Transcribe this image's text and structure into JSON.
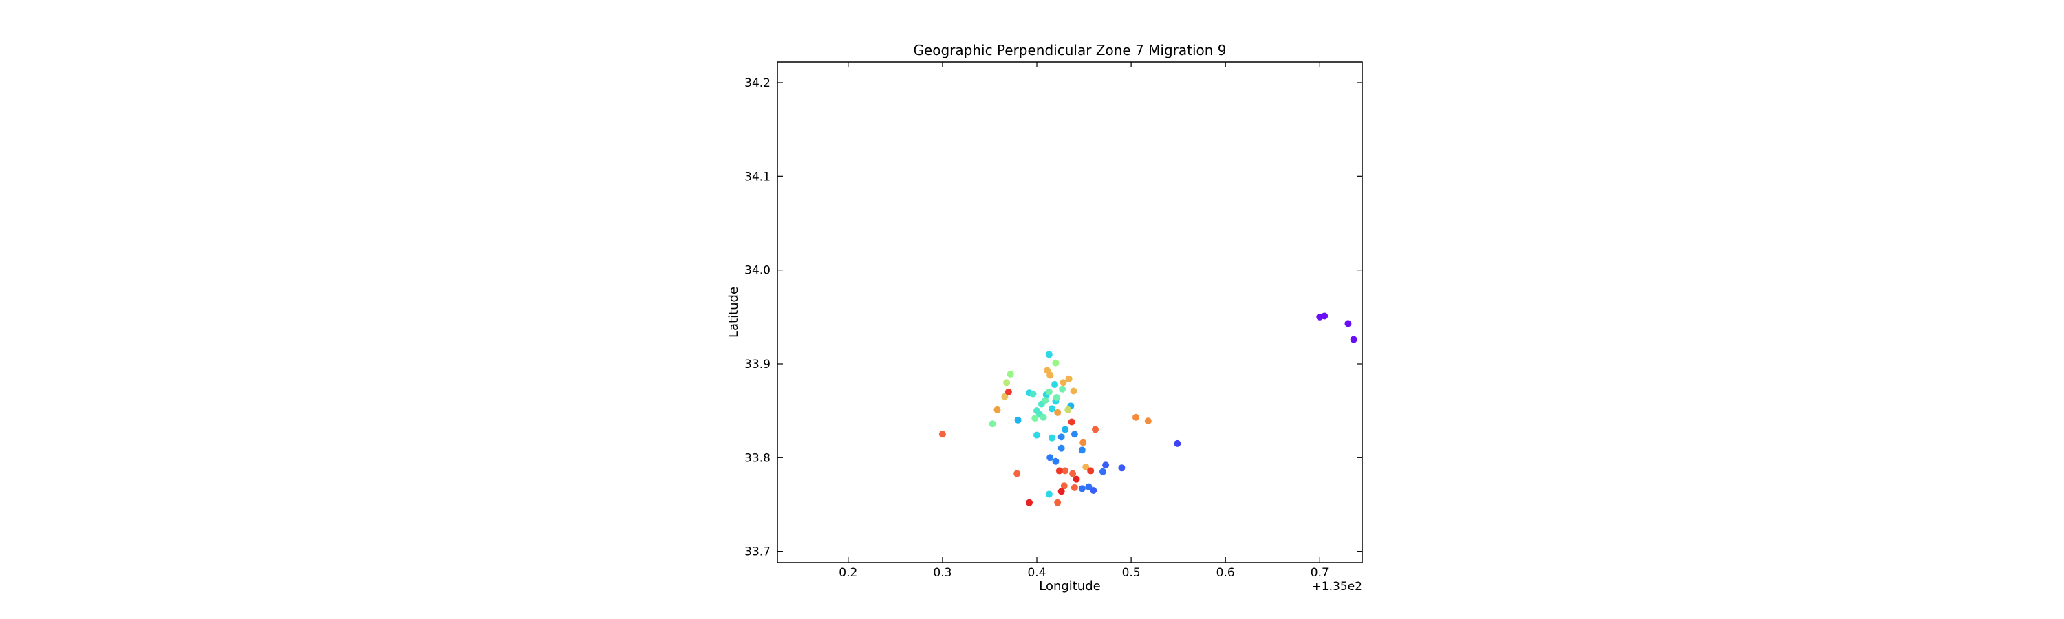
{
  "chart_data": {
    "type": "scatter",
    "title": "Geographic Perpendicular Zone 7 Migration 9",
    "xlabel": "Longitude",
    "ylabel": "Latitude",
    "x_offset_label": "+1.35e2",
    "xlim": [
      135.125,
      135.745
    ],
    "ylim": [
      33.688,
      34.222
    ],
    "xticks": [
      135.2,
      135.3,
      135.4,
      135.5,
      135.6,
      135.7
    ],
    "xtick_labels": [
      "0.2",
      "0.3",
      "0.4",
      "0.5",
      "0.6",
      "0.7"
    ],
    "yticks": [
      33.7,
      33.8,
      33.9,
      34.0,
      34.1,
      34.2
    ],
    "ytick_labels": [
      "33.7",
      "33.8",
      "33.9",
      "34.0",
      "34.1",
      "34.2"
    ],
    "grid": false,
    "points": [
      {
        "x": 135.7,
        "y": 33.95,
        "color": "#6a0ff5"
      },
      {
        "x": 135.705,
        "y": 33.951,
        "color": "#6a0ff5"
      },
      {
        "x": 135.73,
        "y": 33.943,
        "color": "#6a0ff5"
      },
      {
        "x": 135.736,
        "y": 33.926,
        "color": "#6a0ff5"
      },
      {
        "x": 135.549,
        "y": 33.815,
        "color": "#3f42f5"
      },
      {
        "x": 135.49,
        "y": 33.789,
        "color": "#3a5cf8"
      },
      {
        "x": 135.473,
        "y": 33.792,
        "color": "#3a5cf8"
      },
      {
        "x": 135.47,
        "y": 33.785,
        "color": "#3070fa"
      },
      {
        "x": 135.46,
        "y": 33.765,
        "color": "#3a5cf8"
      },
      {
        "x": 135.455,
        "y": 33.769,
        "color": "#3070fa"
      },
      {
        "x": 135.448,
        "y": 33.767,
        "color": "#3070fa"
      },
      {
        "x": 135.414,
        "y": 33.8,
        "color": "#2a7cf8"
      },
      {
        "x": 135.42,
        "y": 33.796,
        "color": "#2a7cf8"
      },
      {
        "x": 135.426,
        "y": 33.81,
        "color": "#2a88f5"
      },
      {
        "x": 135.426,
        "y": 33.822,
        "color": "#2a88f5"
      },
      {
        "x": 135.44,
        "y": 33.825,
        "color": "#2a88f5"
      },
      {
        "x": 135.448,
        "y": 33.808,
        "color": "#2a88f5"
      },
      {
        "x": 135.43,
        "y": 33.83,
        "color": "#1eb4ee"
      },
      {
        "x": 135.416,
        "y": 33.821,
        "color": "#2cd8e6"
      },
      {
        "x": 135.4,
        "y": 33.824,
        "color": "#2cd8e6"
      },
      {
        "x": 135.38,
        "y": 33.84,
        "color": "#1eb4ee"
      },
      {
        "x": 135.413,
        "y": 33.761,
        "color": "#2cd8e6"
      },
      {
        "x": 135.413,
        "y": 33.91,
        "color": "#2cd8e6"
      },
      {
        "x": 135.419,
        "y": 33.878,
        "color": "#2cd8e6"
      },
      {
        "x": 135.392,
        "y": 33.869,
        "color": "#2cd8e6"
      },
      {
        "x": 135.436,
        "y": 33.855,
        "color": "#1eb4ee"
      },
      {
        "x": 135.42,
        "y": 33.86,
        "color": "#2cd8e6"
      },
      {
        "x": 135.416,
        "y": 33.852,
        "color": "#2cd8e6"
      },
      {
        "x": 135.41,
        "y": 33.867,
        "color": "#2cd8e6"
      },
      {
        "x": 135.405,
        "y": 33.857,
        "color": "#4ee8c8"
      },
      {
        "x": 135.4,
        "y": 33.85,
        "color": "#4ee8c8"
      },
      {
        "x": 135.396,
        "y": 33.868,
        "color": "#4ee8c8"
      },
      {
        "x": 135.403,
        "y": 33.846,
        "color": "#4ee8c8"
      },
      {
        "x": 135.407,
        "y": 33.843,
        "color": "#6ff0b0"
      },
      {
        "x": 135.413,
        "y": 33.87,
        "color": "#6ff0b0"
      },
      {
        "x": 135.421,
        "y": 33.864,
        "color": "#6ff0b0"
      },
      {
        "x": 135.427,
        "y": 33.873,
        "color": "#6ff0b0"
      },
      {
        "x": 135.409,
        "y": 33.861,
        "color": "#6ff0b0"
      },
      {
        "x": 135.398,
        "y": 33.842,
        "color": "#7af5a0"
      },
      {
        "x": 135.353,
        "y": 33.836,
        "color": "#7af5a0"
      },
      {
        "x": 135.372,
        "y": 33.889,
        "color": "#9af587"
      },
      {
        "x": 135.42,
        "y": 33.901,
        "color": "#9af587"
      },
      {
        "x": 135.368,
        "y": 33.88,
        "color": "#b8ec78"
      },
      {
        "x": 135.433,
        "y": 33.851,
        "color": "#c8dc6c"
      },
      {
        "x": 135.366,
        "y": 33.865,
        "color": "#e8c260"
      },
      {
        "x": 135.411,
        "y": 33.893,
        "color": "#f2b24e"
      },
      {
        "x": 135.434,
        "y": 33.884,
        "color": "#f2b24e"
      },
      {
        "x": 135.428,
        "y": 33.88,
        "color": "#f2b24e"
      },
      {
        "x": 135.439,
        "y": 33.871,
        "color": "#f2b24e"
      },
      {
        "x": 135.414,
        "y": 33.888,
        "color": "#f2b24e"
      },
      {
        "x": 135.358,
        "y": 33.851,
        "color": "#f0a040"
      },
      {
        "x": 135.422,
        "y": 33.848,
        "color": "#f0a040"
      },
      {
        "x": 135.505,
        "y": 33.843,
        "color": "#f58c3c"
      },
      {
        "x": 135.518,
        "y": 33.839,
        "color": "#f58c3c"
      },
      {
        "x": 135.452,
        "y": 33.79,
        "color": "#f2b24e"
      },
      {
        "x": 135.449,
        "y": 33.816,
        "color": "#f58c3c"
      },
      {
        "x": 135.3,
        "y": 33.825,
        "color": "#f5643c"
      },
      {
        "x": 135.379,
        "y": 33.783,
        "color": "#f5643c"
      },
      {
        "x": 135.462,
        "y": 33.83,
        "color": "#f5643c"
      },
      {
        "x": 135.43,
        "y": 33.786,
        "color": "#f5643c"
      },
      {
        "x": 135.438,
        "y": 33.783,
        "color": "#f5643c"
      },
      {
        "x": 135.44,
        "y": 33.768,
        "color": "#f5643c"
      },
      {
        "x": 135.429,
        "y": 33.77,
        "color": "#f5643c"
      },
      {
        "x": 135.422,
        "y": 33.752,
        "color": "#f5643c"
      },
      {
        "x": 135.437,
        "y": 33.838,
        "color": "#ef3a2a"
      },
      {
        "x": 135.37,
        "y": 33.87,
        "color": "#ef3a2a"
      },
      {
        "x": 135.424,
        "y": 33.786,
        "color": "#ef3a2a"
      },
      {
        "x": 135.457,
        "y": 33.786,
        "color": "#ef3a2a"
      },
      {
        "x": 135.442,
        "y": 33.777,
        "color": "#e82020"
      },
      {
        "x": 135.426,
        "y": 33.764,
        "color": "#e82020"
      },
      {
        "x": 135.392,
        "y": 33.752,
        "color": "#e82020"
      }
    ]
  }
}
